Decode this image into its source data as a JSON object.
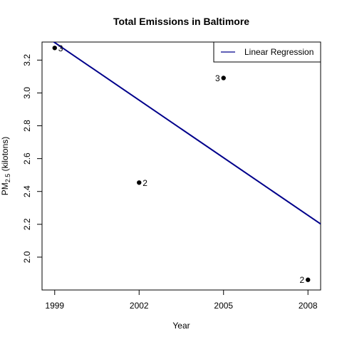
{
  "chart_data": {
    "type": "scatter",
    "title": "Total Emissions in Baltimore",
    "xlabel": "Year",
    "ylabel_main": "PM",
    "ylabel_sub": "2.5",
    "ylabel_rest": " (kilotons)",
    "xlim": [
      1998.55,
      2008.45
    ],
    "ylim": [
      1.8,
      3.31
    ],
    "x_ticks": [
      1999,
      2002,
      2005,
      2008
    ],
    "x_tick_labels": [
      "1999",
      "2002",
      "2005",
      "2008"
    ],
    "y_ticks": [
      2.0,
      2.2,
      2.4,
      2.6,
      2.8,
      3.0,
      3.2
    ],
    "y_tick_labels": [
      "2.0",
      "2.2",
      "2.4",
      "2.6",
      "2.8",
      "3.0",
      "3.2"
    ],
    "points": [
      {
        "x": 1999,
        "y": 3.274,
        "label": "3",
        "label_side": "right"
      },
      {
        "x": 2002,
        "y": 2.454,
        "label": "2",
        "label_side": "right"
      },
      {
        "x": 2005,
        "y": 3.091,
        "label": "3",
        "label_side": "left"
      },
      {
        "x": 2008,
        "y": 1.862,
        "label": "2",
        "label_side": "left"
      }
    ],
    "regression": {
      "name": "Linear Regression",
      "slope": -0.1169,
      "intercept": 236.99,
      "color": "#00008B"
    },
    "legend": {
      "position": "top-right",
      "entries": [
        "Linear Regression"
      ]
    },
    "grid": false,
    "point_color": "#000000"
  }
}
